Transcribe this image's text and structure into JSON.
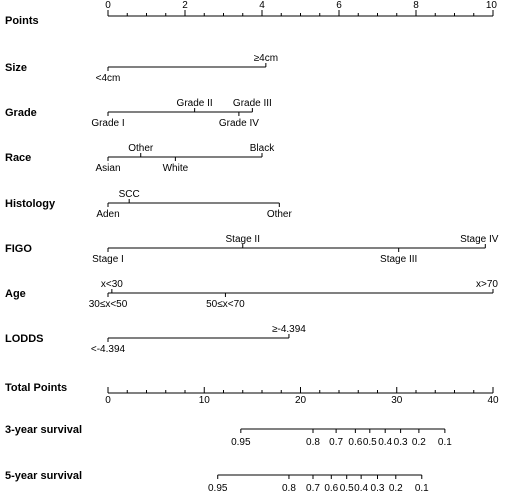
{
  "chart_data": {
    "type": "nomogram",
    "points_axis": {
      "label": "Points",
      "range": [
        0,
        10
      ],
      "major_ticks": [
        "0",
        "2",
        "4",
        "6",
        "8",
        "10"
      ],
      "minor_step": 0.5
    },
    "variables": [
      {
        "label": "Size",
        "range": [
          0,
          4.1
        ],
        "levels": [
          {
            "label": "<4cm",
            "points": 0,
            "side": "below"
          },
          {
            "label": "≥4cm",
            "points": 4.1,
            "side": "above"
          }
        ]
      },
      {
        "label": "Grade",
        "range": [
          0,
          3.75
        ],
        "levels": [
          {
            "label": "Grade I",
            "points": 0,
            "side": "below"
          },
          {
            "label": "Grade II",
            "points": 2.25,
            "side": "above"
          },
          {
            "label": "Grade III",
            "points": 3.75,
            "side": "above"
          },
          {
            "label": "Grade IV",
            "points": 3.4,
            "side": "below"
          }
        ]
      },
      {
        "label": "Race",
        "range": [
          0,
          4.0
        ],
        "levels": [
          {
            "label": "Asian",
            "points": 0,
            "side": "below"
          },
          {
            "label": "Other",
            "points": 0.85,
            "side": "above"
          },
          {
            "label": "White",
            "points": 1.75,
            "side": "below"
          },
          {
            "label": "Black",
            "points": 4.0,
            "side": "above"
          }
        ]
      },
      {
        "label": "Histology",
        "range": [
          0,
          4.45
        ],
        "levels": [
          {
            "label": "Aden",
            "points": 0,
            "side": "below"
          },
          {
            "label": "SCC",
            "points": 0.55,
            "side": "above"
          },
          {
            "label": "Other",
            "points": 4.45,
            "side": "below"
          }
        ]
      },
      {
        "label": "FIGO",
        "range": [
          0,
          9.8
        ],
        "levels": [
          {
            "label": "Stage I",
            "points": 0,
            "side": "below"
          },
          {
            "label": "Stage II",
            "points": 3.5,
            "side": "above"
          },
          {
            "label": "Stage III",
            "points": 7.55,
            "side": "below"
          },
          {
            "label": "Stage IV",
            "points": 9.8,
            "side": "above"
          }
        ]
      },
      {
        "label": "Age",
        "range": [
          0,
          10
        ],
        "levels": [
          {
            "label": "x<30",
            "points": 0.1,
            "side": "above"
          },
          {
            "label": "30≤x<50",
            "points": 0,
            "side": "below"
          },
          {
            "label": "50≤x<70",
            "points": 3.05,
            "side": "below"
          },
          {
            "label": "x>70",
            "points": 10,
            "side": "above"
          }
        ]
      },
      {
        "label": "LODDS",
        "range": [
          0,
          4.7
        ],
        "levels": [
          {
            "label": "<-4.394",
            "points": 0,
            "side": "below"
          },
          {
            "label": "≥-4.394",
            "points": 4.7,
            "side": "above"
          }
        ]
      }
    ],
    "total_points_axis": {
      "label": "Total Points",
      "range": [
        0,
        40
      ],
      "major_ticks": [
        "0",
        "10",
        "20",
        "30",
        "40"
      ],
      "minor_step": 2
    },
    "survival_axes": [
      {
        "label": "3-year survival",
        "ticks": [
          {
            "label": "0.95",
            "total_points": 13.8
          },
          {
            "label": "0.8",
            "total_points": 21.3
          },
          {
            "label": "0.7",
            "total_points": 23.7
          },
          {
            "label": "0.6",
            "total_points": 25.7
          },
          {
            "label": "0.5",
            "total_points": 27.2
          },
          {
            "label": "0.4",
            "total_points": 28.8
          },
          {
            "label": "0.3",
            "total_points": 30.4
          },
          {
            "label": "0.2",
            "total_points": 32.3
          },
          {
            "label": "0.1",
            "total_points": 35.0
          }
        ]
      },
      {
        "label": "5-year survival",
        "ticks": [
          {
            "label": "0.95",
            "total_points": 11.4
          },
          {
            "label": "0.8",
            "total_points": 18.8
          },
          {
            "label": "0.7",
            "total_points": 21.3
          },
          {
            "label": "0.6",
            "total_points": 23.2
          },
          {
            "label": "0.5",
            "total_points": 24.8
          },
          {
            "label": "0.4",
            "total_points": 26.3
          },
          {
            "label": "0.3",
            "total_points": 28.0
          },
          {
            "label": "0.2",
            "total_points": 29.9
          },
          {
            "label": "0.1",
            "total_points": 32.6
          }
        ]
      }
    ]
  }
}
